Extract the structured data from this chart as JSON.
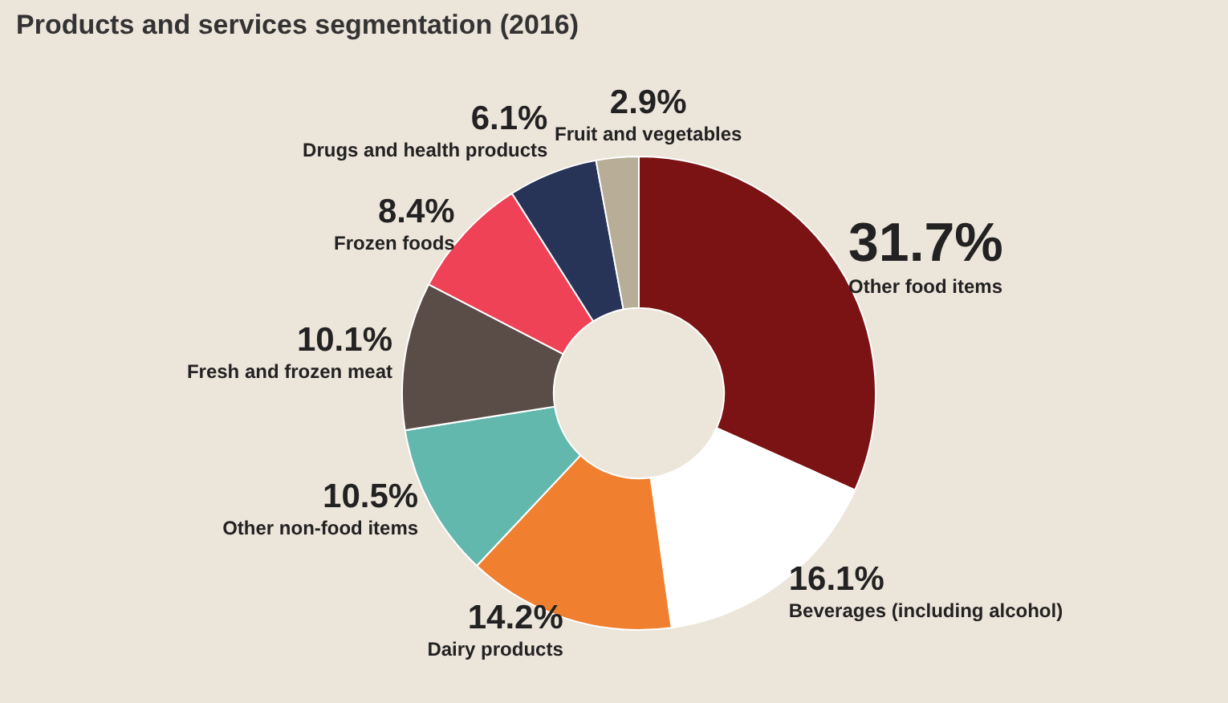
{
  "chart_data": {
    "type": "donut",
    "title": "Products and services segmentation (2016)",
    "categories": [
      "Other food items",
      "Beverages (including alcohol)",
      "Dairy products",
      "Other non-food items",
      "Fresh and frozen meat",
      "Frozen foods",
      "Drugs and health products",
      "Fruit and vegetables"
    ],
    "values": [
      31.7,
      16.1,
      14.2,
      10.5,
      10.1,
      8.4,
      6.1,
      2.9
    ],
    "colors": [
      "#7b1214",
      "#ffffff",
      "#f08030",
      "#62b8ad",
      "#5a4d48",
      "#ef4257",
      "#283358",
      "#b8ae98"
    ],
    "value_labels": [
      "31.7%",
      "16.1%",
      "14.2%",
      "10.5%",
      "10.1%",
      "8.4%",
      "6.1%",
      "2.9%"
    ],
    "legend": false
  }
}
